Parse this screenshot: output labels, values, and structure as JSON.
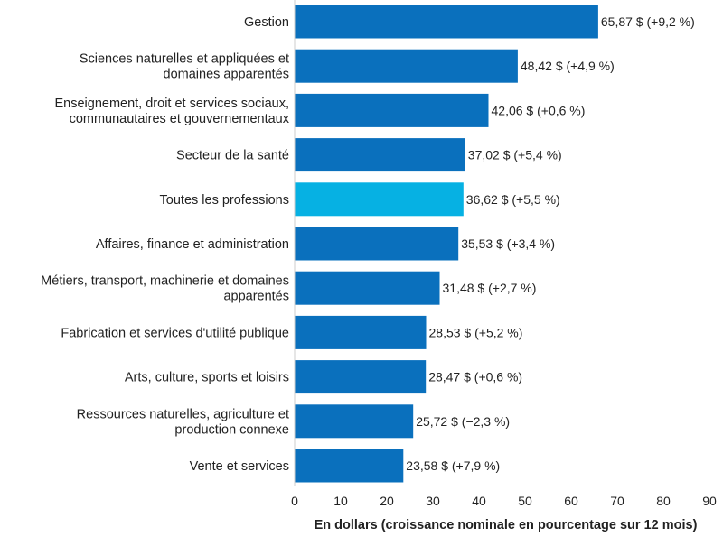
{
  "chart_data": {
    "type": "bar",
    "orientation": "horizontal",
    "title": "",
    "xlabel": "En dollars (croissance nominale en pourcentage sur 12 mois)",
    "ylabel": "",
    "xlim": [
      0,
      90
    ],
    "xticks": [
      "0",
      "10",
      "20",
      "30",
      "40",
      "50",
      "60",
      "70",
      "80",
      "90"
    ],
    "grid": false,
    "legend": "none",
    "colors": {
      "default_bar": "#0a70bd",
      "highlight_bar": "#06b1e3",
      "axis": "#cccccc"
    },
    "categories": [
      [
        "Gestion"
      ],
      [
        "Sciences naturelles et appliquées et",
        "domaines apparentés"
      ],
      [
        "Enseignement, droit et services sociaux,",
        "communautaires et gouvernementaux"
      ],
      [
        "Secteur de la santé"
      ],
      [
        "Toutes les professions"
      ],
      [
        "Affaires, finance et administration"
      ],
      [
        "Métiers, transport, machinerie et domaines",
        "apparentés"
      ],
      [
        "Fabrication et services d'utilité publique"
      ],
      [
        "Arts, culture, sports et loisirs"
      ],
      [
        "Ressources naturelles, agriculture et",
        "production connexe"
      ],
      [
        "Vente et services"
      ]
    ],
    "values": [
      65.87,
      48.42,
      42.06,
      37.02,
      36.62,
      35.53,
      31.48,
      28.53,
      28.47,
      25.72,
      23.58
    ],
    "data_labels": [
      "65,87 $ (+9,2 %)",
      "48,42 $ (+4,9 %)",
      "42,06 $ (+0,6 %)",
      "37,02 $ (+5,4 %)",
      "36,62 $ (+5,5 %)",
      "35,53 $ (+3,4 %)",
      "31,48 $ (+2,7 %)",
      "28,53 $ (+5,2 %)",
      "28,47 $ (+0,6 %)",
      "25,72 $ (−2,3 %)",
      "23,58 $ (+7,9 %)"
    ],
    "highlight_index": 4
  }
}
